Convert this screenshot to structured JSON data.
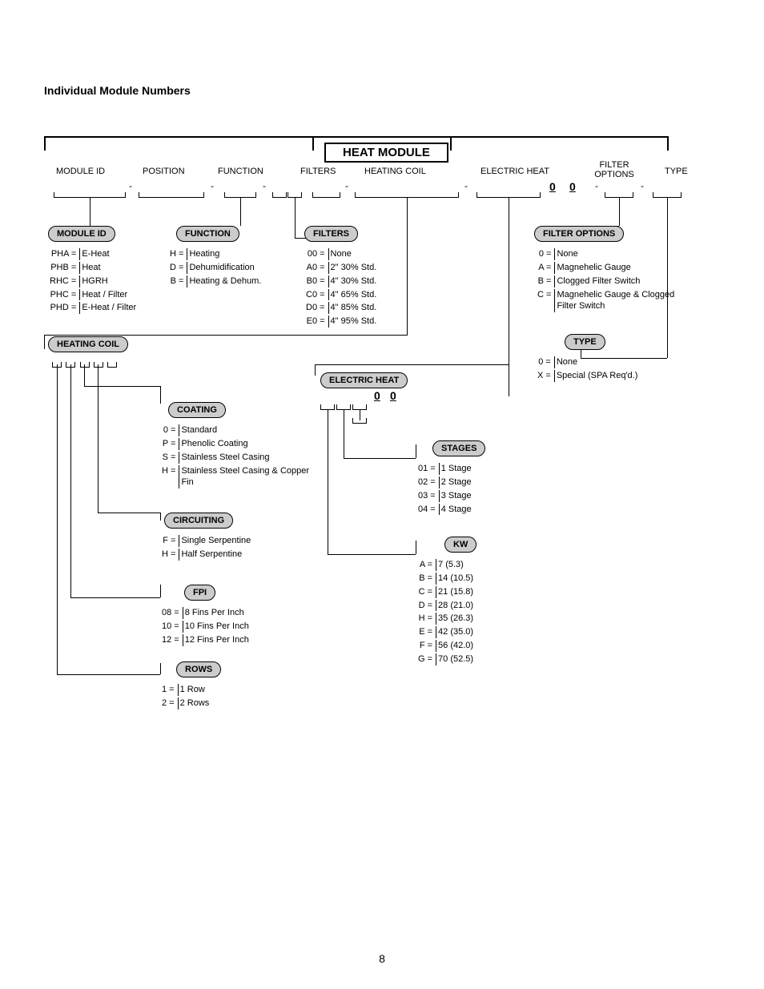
{
  "page": {
    "title": "Individual Module Numbers",
    "number": "8"
  },
  "header": {
    "module_title": "HEAT MODULE",
    "columns": [
      "MODULE ID",
      "POSITION",
      "FUNCTION",
      "FILTERS",
      "HEATING COIL",
      "ELECTRIC HEAT",
      "FILTER\nOPTIONS",
      "TYPE"
    ],
    "zeros": [
      "0",
      "0"
    ]
  },
  "module_id": {
    "title": "MODULE ID",
    "rows": [
      [
        "PHA =",
        "E-Heat"
      ],
      [
        "PHB =",
        "Heat"
      ],
      [
        "RHC =",
        "HGRH"
      ],
      [
        "PHC =",
        "Heat / Filter"
      ],
      [
        "PHD =",
        "E-Heat / Filter"
      ]
    ]
  },
  "function": {
    "title": "FUNCTION",
    "rows": [
      [
        "H =",
        "Heating"
      ],
      [
        "D =",
        "Dehumidification"
      ],
      [
        "B =",
        "Heating & Dehum."
      ]
    ]
  },
  "filters": {
    "title": "FILTERS",
    "rows": [
      [
        "00 =",
        "None"
      ],
      [
        "A0 =",
        "2\" 30% Std."
      ],
      [
        "B0 =",
        "4\" 30% Std."
      ],
      [
        "C0 =",
        "4\" 65% Std."
      ],
      [
        "D0 =",
        "4\" 85% Std."
      ],
      [
        "E0 =",
        "4\" 95% Std."
      ]
    ]
  },
  "filter_options": {
    "title": "FILTER OPTIONS",
    "rows": [
      [
        "0 =",
        "None"
      ],
      [
        "A =",
        "Magnehelic Gauge"
      ],
      [
        "B =",
        "Clogged Filter Switch"
      ],
      [
        "C =",
        "Magnehelic Gauge & Clogged Filter Switch"
      ]
    ]
  },
  "type": {
    "title": "TYPE",
    "rows": [
      [
        "0 =",
        "None"
      ],
      [
        "X =",
        "Special (SPA Req'd.)"
      ]
    ]
  },
  "heating_coil": {
    "title": "HEATING COIL"
  },
  "coating": {
    "title": "COATING",
    "rows": [
      [
        "0 =",
        "Standard"
      ],
      [
        "P =",
        "Phenolic Coating"
      ],
      [
        "S =",
        "Stainless Steel Casing"
      ],
      [
        "H =",
        "Stainless Steel Casing & Copper Fin"
      ]
    ]
  },
  "circuiting": {
    "title": "CIRCUITING",
    "rows": [
      [
        "F =",
        "Single Serpentine"
      ],
      [
        "H =",
        "Half Serpentine"
      ]
    ]
  },
  "fpi": {
    "title": "FPI",
    "rows": [
      [
        "08 =",
        "8 Fins Per Inch"
      ],
      [
        "10 =",
        "10 Fins Per Inch"
      ],
      [
        "12 =",
        "12 Fins Per Inch"
      ]
    ]
  },
  "rows_sec": {
    "title": "ROWS",
    "rows": [
      [
        "1 =",
        "1 Row"
      ],
      [
        "2 =",
        "2 Rows"
      ]
    ]
  },
  "electric_heat": {
    "title": "ELECTRIC HEAT",
    "zeros": [
      "0",
      "0"
    ]
  },
  "stages": {
    "title": "STAGES",
    "rows": [
      [
        "01 =",
        "1 Stage"
      ],
      [
        "02 =",
        "2 Stage"
      ],
      [
        "03 =",
        "3 Stage"
      ],
      [
        "04 =",
        "4 Stage"
      ]
    ]
  },
  "kw": {
    "title": "KW",
    "rows": [
      [
        "A =",
        "7 (5.3)"
      ],
      [
        "B =",
        "14 (10.5)"
      ],
      [
        "C =",
        "21 (15.8)"
      ],
      [
        "D =",
        "28 (21.0)"
      ],
      [
        "H =",
        "35 (26.3)"
      ],
      [
        "E =",
        "42 (35.0)"
      ],
      [
        "F =",
        "56 (42.0)"
      ],
      [
        "G =",
        "70 (52.5)"
      ]
    ]
  },
  "colors": {
    "pill_bg": "#cccccc",
    "line": "#000000"
  }
}
